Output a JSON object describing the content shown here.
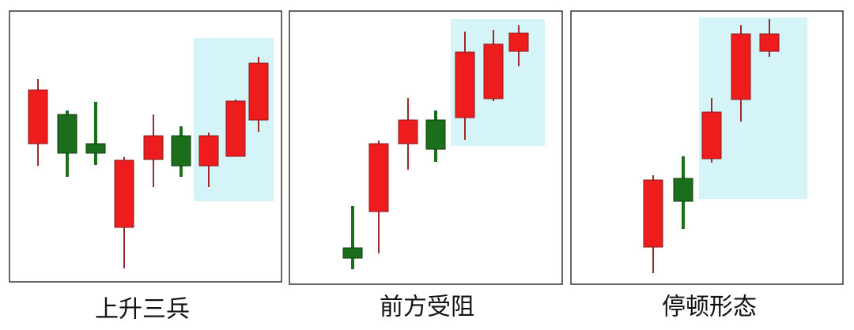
{
  "panels": [
    {
      "caption": "上升三兵"
    },
    {
      "caption": "前方受阻"
    },
    {
      "caption": "停顿形态"
    }
  ]
}
